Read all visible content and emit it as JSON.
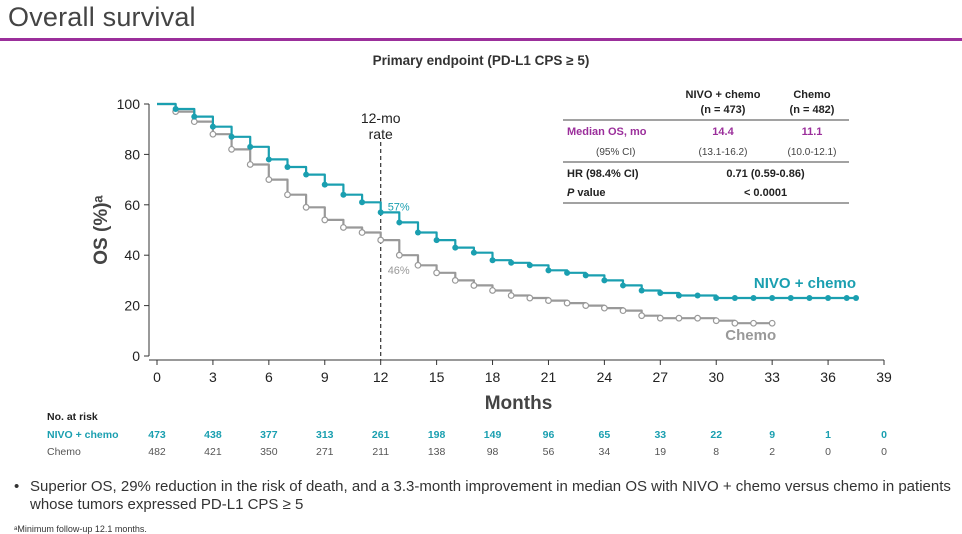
{
  "slide": {
    "title": "Overall survival",
    "subtitle": "Primary endpoint (PD-L1 CPS ≥ 5)",
    "accent_color": "#9b2f9b",
    "bullet": "Superior OS, 29% reduction in the risk of death, and a 3.3-month improvement in median OS with NIVO + chemo versus chemo in patients whose tumors expressed PD-L1 CPS ≥ 5",
    "footnote": "ᵃMinimum follow-up 12.1 months."
  },
  "chart_data": {
    "type": "line",
    "title": "",
    "xlabel": "Months",
    "ylabel": "OS (%)ᵃ",
    "xlim": [
      0,
      39
    ],
    "ylim": [
      0,
      100
    ],
    "xticks": [
      0,
      3,
      6,
      9,
      12,
      15,
      18,
      21,
      24,
      27,
      30,
      33,
      36,
      39
    ],
    "yticks": [
      0,
      20,
      40,
      60,
      80,
      100
    ],
    "grid": false,
    "series": [
      {
        "name": "NIVO + chemo",
        "color": "#1a9fb0",
        "x": [
          0,
          1,
          2,
          3,
          4,
          5,
          6,
          7,
          8,
          9,
          10,
          11,
          12,
          13,
          14,
          15,
          16,
          17,
          18,
          19,
          20,
          21,
          22,
          23,
          24,
          25,
          26,
          27,
          28,
          29,
          30,
          31,
          32,
          33,
          34,
          35,
          36,
          37,
          37.5
        ],
        "y": [
          100,
          98,
          95,
          91,
          87,
          83,
          78,
          75,
          72,
          68,
          64,
          61,
          57,
          53,
          49,
          46,
          43,
          41,
          38,
          37,
          36,
          34,
          33,
          32,
          30,
          28,
          26,
          25,
          24,
          24,
          23,
          23,
          23,
          23,
          23,
          23,
          23,
          23,
          23
        ]
      },
      {
        "name": "Chemo",
        "color": "#999999",
        "x": [
          0,
          1,
          2,
          3,
          4,
          5,
          6,
          7,
          8,
          9,
          10,
          11,
          12,
          13,
          14,
          15,
          16,
          17,
          18,
          19,
          20,
          21,
          22,
          23,
          24,
          25,
          26,
          27,
          28,
          29,
          30,
          31,
          32,
          33
        ],
        "y": [
          100,
          97,
          93,
          88,
          82,
          76,
          70,
          64,
          59,
          54,
          51,
          49,
          46,
          40,
          36,
          33,
          30,
          28,
          26,
          24,
          23,
          22,
          21,
          20,
          19,
          18,
          16,
          15,
          15,
          15,
          14,
          13,
          13,
          13
        ]
      }
    ],
    "legend_placement": "inline at curve ends",
    "annotations": {
      "rate_line": {
        "x": 12,
        "label_line1": "12-mo",
        "label_line2": "rate"
      },
      "nivo_rate": "57%",
      "chemo_rate": "46%"
    },
    "stats_table": {
      "col_nivo": "NIVO + chemo",
      "col_nivo_n": "(n = 473)",
      "col_chemo": "Chemo",
      "col_chemo_n": "(n = 482)",
      "median_label": "Median OS, mo",
      "median_nivo": "14.4",
      "median_chemo": "11.1",
      "ci_label": "(95% CI)",
      "ci_nivo": "(13.1-16.2)",
      "ci_chemo": "(10.0-12.1)",
      "hr_label": "HR (98.4% CI)",
      "hr_value": "0.71 (0.59-0.86)",
      "p_label_italic": "P",
      "p_label_rest": " value",
      "p_value": "< 0.0001"
    },
    "risk_table": {
      "header": "No. at risk",
      "months": [
        0,
        3,
        6,
        9,
        12,
        15,
        18,
        21,
        24,
        27,
        30,
        33,
        36,
        39
      ],
      "rows": [
        {
          "label": "NIVO + chemo",
          "values": [
            "473",
            "438",
            "377",
            "313",
            "261",
            "198",
            "149",
            "96",
            "65",
            "33",
            "22",
            "9",
            "1",
            "0"
          ]
        },
        {
          "label": "Chemo",
          "values": [
            "482",
            "421",
            "350",
            "271",
            "211",
            "138",
            "98",
            "56",
            "34",
            "19",
            "8",
            "2",
            "0",
            "0"
          ]
        }
      ]
    }
  }
}
